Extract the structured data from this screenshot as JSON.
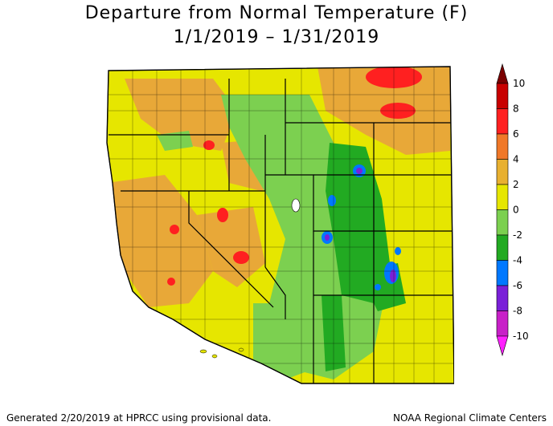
{
  "title": {
    "line1": "Departure from Normal Temperature (F)",
    "line2": "1/1/2019 – 1/31/2019"
  },
  "legend": {
    "labels": [
      "10",
      "8",
      "6",
      "4",
      "2",
      "0",
      "-2",
      "-4",
      "-6",
      "-8",
      "-10"
    ],
    "colors": [
      "#7a0000",
      "#c80000",
      "#ff2020",
      "#f07828",
      "#e8b030",
      "#e6e600",
      "#7cd050",
      "#22aa22",
      "#0078ff",
      "#7a20d8",
      "#c820c8",
      "#ff20ff"
    ]
  },
  "footer": {
    "left": "Generated 2/20/2019 at HPRCC using provisional data.",
    "right": "NOAA Regional Climate Centers"
  },
  "map_colors": {
    "ocean": "#ffffff",
    "yellow": "#e6e600",
    "orange": "#e8a838",
    "red": "#ff2020",
    "light_green": "#7cd050",
    "green": "#22aa22",
    "blue": "#0078ff",
    "purple": "#7a20d8",
    "outline": "#000000"
  }
}
